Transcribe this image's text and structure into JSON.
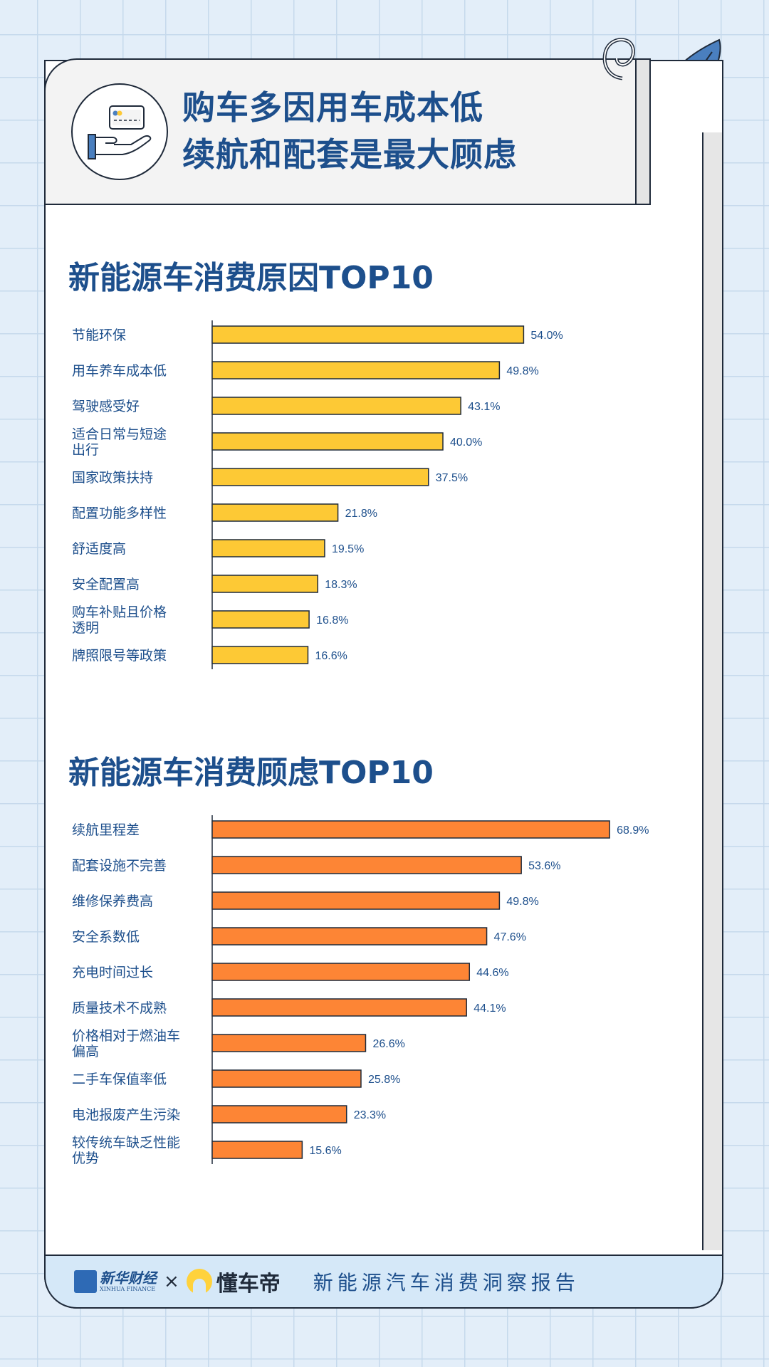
{
  "header": {
    "title_line1": "购车多因用车成本低",
    "title_line2": "续航和配套是最大顾虑"
  },
  "chart_data": [
    {
      "type": "bar",
      "orientation": "horizontal",
      "title": "新能源车消费原因TOP10",
      "categories": [
        [
          "节能环保"
        ],
        [
          "用车养车成本低"
        ],
        [
          "驾驶感受好"
        ],
        [
          "适合日常与短途",
          "出行"
        ],
        [
          "国家政策扶持"
        ],
        [
          "配置功能多样性"
        ],
        [
          "舒适度高"
        ],
        [
          "安全配置高"
        ],
        [
          "购车补贴且价格",
          "透明"
        ],
        [
          "牌照限号等政策"
        ]
      ],
      "values": [
        54.0,
        49.8,
        43.1,
        40.0,
        37.5,
        21.8,
        19.5,
        18.3,
        16.8,
        16.6
      ],
      "value_labels": [
        "54.0%",
        "49.8%",
        "43.1%",
        "40.0%",
        "37.5%",
        "21.8%",
        "19.5%",
        "18.3%",
        "16.8%",
        "16.6%"
      ],
      "bar_color": "#fdc935",
      "unit": "%"
    },
    {
      "type": "bar",
      "orientation": "horizontal",
      "title": "新能源车消费顾虑TOP10",
      "categories": [
        [
          "续航里程差"
        ],
        [
          "配套设施不完善"
        ],
        [
          "维修保养费高"
        ],
        [
          "安全系数低"
        ],
        [
          "充电时间过长"
        ],
        [
          "质量技术不成熟"
        ],
        [
          "价格相对于燃油车",
          "偏高"
        ],
        [
          "二手车保值率低"
        ],
        [
          "电池报废产生污染"
        ],
        [
          "较传统车缺乏性能",
          "优势"
        ]
      ],
      "values": [
        68.9,
        53.6,
        49.8,
        47.6,
        44.6,
        44.1,
        26.6,
        25.8,
        23.3,
        15.6
      ],
      "value_labels": [
        "68.9%",
        "53.6%",
        "49.8%",
        "47.6%",
        "44.6%",
        "44.1%",
        "26.6%",
        "25.8%",
        "23.3%",
        "15.6%"
      ],
      "bar_color": "#fd8535",
      "unit": "%"
    }
  ],
  "footer": {
    "xinhua_cn": "新华财经",
    "xinhua_en": "XINHUA FINANCE",
    "times": "×",
    "dcd": "懂车帝",
    "report": "新能源汽车消费洞察报告"
  },
  "colors": {
    "title_blue": "#1d4f8c",
    "label_blue": "#1d4f8c",
    "outline": "#1f2a3a",
    "background": "#e3eef9"
  }
}
